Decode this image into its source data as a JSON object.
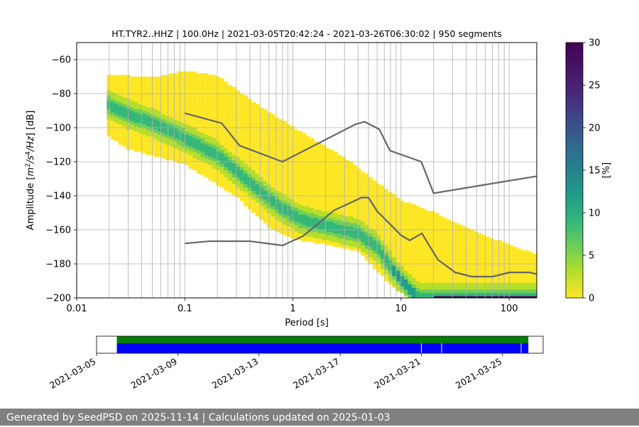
{
  "chart_data": {
    "type": "heatmap",
    "title": "HT.TYR2..HHZ | 100.0Hz | 2021-03-05T20:42:24 - 2021-03-26T06:30:02 | 950 segments",
    "xlabel": "Period [s]",
    "ylabel_parts": [
      "Amplitude [",
      "m",
      "2",
      "/",
      "s",
      "4",
      "/",
      "Hz",
      "] [dB]"
    ],
    "xscale": "log",
    "xlim": [
      0.01,
      180
    ],
    "ylim": [
      -200,
      -50
    ],
    "x_tick_values": [
      0.01,
      0.1,
      1,
      10,
      100
    ],
    "x_tick_labels": [
      "0.01",
      "0.1",
      "1",
      "10",
      "100"
    ],
    "y_tick_values": [
      -200,
      -180,
      -160,
      -140,
      -120,
      -100,
      -80,
      -60
    ],
    "y_tick_labels": [
      "−200",
      "−180",
      "−160",
      "−140",
      "−120",
      "−100",
      "−80",
      "−60"
    ],
    "grid": "on",
    "colorbar": {
      "label": "[%]",
      "range": [
        0,
        30
      ],
      "tick_values": [
        0,
        5,
        10,
        15,
        20,
        25,
        30
      ],
      "tick_labels": [
        "0",
        "5",
        "10",
        "15",
        "20",
        "25",
        "30"
      ],
      "colormap": "viridis"
    },
    "ppsd_mode": [
      [
        0.019,
        -86
      ],
      [
        0.03,
        -92
      ],
      [
        0.05,
        -97
      ],
      [
        0.1,
        -106
      ],
      [
        0.2,
        -116
      ],
      [
        0.4,
        -132
      ],
      [
        0.7,
        -145
      ],
      [
        1.2,
        -154
      ],
      [
        2.5,
        -159
      ],
      [
        4,
        -162
      ],
      [
        6,
        -170
      ],
      [
        9,
        -186
      ],
      [
        12,
        -195
      ],
      [
        15,
        -200
      ]
    ],
    "ppsd_upper": [
      [
        0.019,
        -69
      ],
      [
        0.05,
        -71
      ],
      [
        0.1,
        -67
      ],
      [
        0.2,
        -70
      ],
      [
        0.5,
        -88
      ],
      [
        1,
        -100
      ],
      [
        3,
        -118
      ],
      [
        10,
        -143
      ],
      [
        20,
        -150
      ],
      [
        50,
        -162
      ],
      [
        180,
        -175
      ]
    ],
    "ppsd_lower": [
      [
        0.019,
        -104
      ],
      [
        0.03,
        -112
      ],
      [
        0.1,
        -121
      ],
      [
        0.3,
        -140
      ],
      [
        0.6,
        -158
      ],
      [
        1,
        -165
      ],
      [
        2,
        -168
      ],
      [
        4,
        -172
      ],
      [
        8,
        -192
      ],
      [
        12,
        -200
      ]
    ],
    "noise_model_high": {
      "name": "NHNM",
      "points": [
        [
          0.1,
          -91.5
        ],
        [
          0.22,
          -97.4
        ],
        [
          0.32,
          -110.5
        ],
        [
          0.8,
          -120
        ],
        [
          3.8,
          -98
        ],
        [
          4.6,
          -96.5
        ],
        [
          6.3,
          -101
        ],
        [
          7.9,
          -113.5
        ],
        [
          15.4,
          -120
        ],
        [
          20,
          -138.5
        ],
        [
          180,
          -128.5
        ]
      ]
    },
    "noise_model_low": {
      "name": "NLNM",
      "points": [
        [
          0.1,
          -168
        ],
        [
          0.17,
          -166.7
        ],
        [
          0.4,
          -166.7
        ],
        [
          0.8,
          -169.2
        ],
        [
          1.24,
          -163.7
        ],
        [
          2.4,
          -148.6
        ],
        [
          4.3,
          -141.1
        ],
        [
          5,
          -141.1
        ],
        [
          6,
          -149
        ],
        [
          10,
          -163.2
        ],
        [
          12,
          -166.2
        ],
        [
          15.6,
          -162.1
        ],
        [
          21.9,
          -177.5
        ],
        [
          31.6,
          -185
        ],
        [
          45,
          -187.5
        ],
        [
          70,
          -187.5
        ],
        [
          101,
          -185
        ],
        [
          154,
          -185
        ],
        [
          180,
          -186
        ]
      ]
    },
    "time_coverage": {
      "date_range": [
        "2021-03-05",
        "2021-03-27"
      ],
      "date_ticks": [
        "2021-03-05",
        "2021-03-09",
        "2021-03-13",
        "2021-03-17",
        "2021-03-21",
        "2021-03-25"
      ],
      "available_data": [
        [
          "2021-03-06",
          "2021-03-26T06:30"
        ]
      ],
      "used_segments": [
        [
          "2021-03-06",
          "2021-03-26T06:30"
        ]
      ],
      "gaps": [
        "2021-03-21T00:00",
        "2021-03-22T00:00",
        "2021-03-25T22:00"
      ],
      "colors": {
        "available": "#008000",
        "used": "#0000ff"
      }
    }
  },
  "footer": {
    "text": "Generated by SeedPSD on 2025-11-14 | Calculations updated on 2025-01-03"
  },
  "colors": {
    "noise_model_line": "#666666",
    "grid": "#b0b0b0",
    "footer_bg": "#808080"
  }
}
